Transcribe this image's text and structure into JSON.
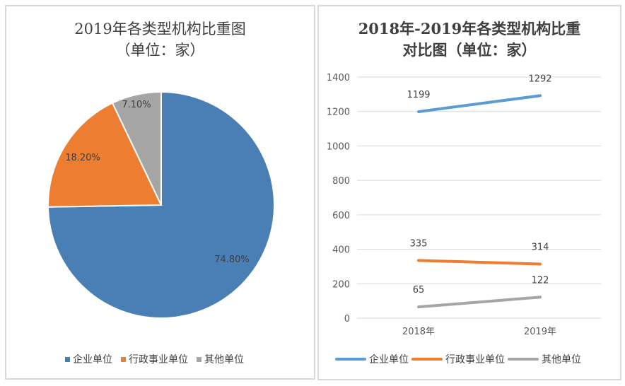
{
  "chart_data": [
    {
      "type": "pie",
      "title_line1": "2019年各类型机构比重图",
      "title_line2": "（单位：家）",
      "categories": [
        "企业单位",
        "行政事业单位",
        "其他单位"
      ],
      "values": [
        74.8,
        18.2,
        7.1
      ],
      "labels": [
        "74.80%",
        "18.20%",
        "7.10%"
      ],
      "colors": [
        "#4a7fb5",
        "#ed7d31",
        "#a5a5a5"
      ],
      "legend": "bottom"
    },
    {
      "type": "line",
      "title_line1": "2018年-2019年各类型机构比重",
      "title_line2": "对比图（单位：家）",
      "x": [
        "2018年",
        "2019年"
      ],
      "series": [
        {
          "name": "企业单位",
          "values": [
            1199,
            1292
          ],
          "color": "#5b9bd5"
        },
        {
          "name": "行政事业单位",
          "values": [
            335,
            314
          ],
          "color": "#ed7d31"
        },
        {
          "name": "其他单位",
          "values": [
            65,
            122
          ],
          "color": "#a5a5a5"
        }
      ],
      "ylim": [
        0,
        1400
      ],
      "yticks": [
        0,
        200,
        400,
        600,
        800,
        1000,
        1200,
        1400
      ],
      "grid": true,
      "legend": "bottom"
    }
  ]
}
